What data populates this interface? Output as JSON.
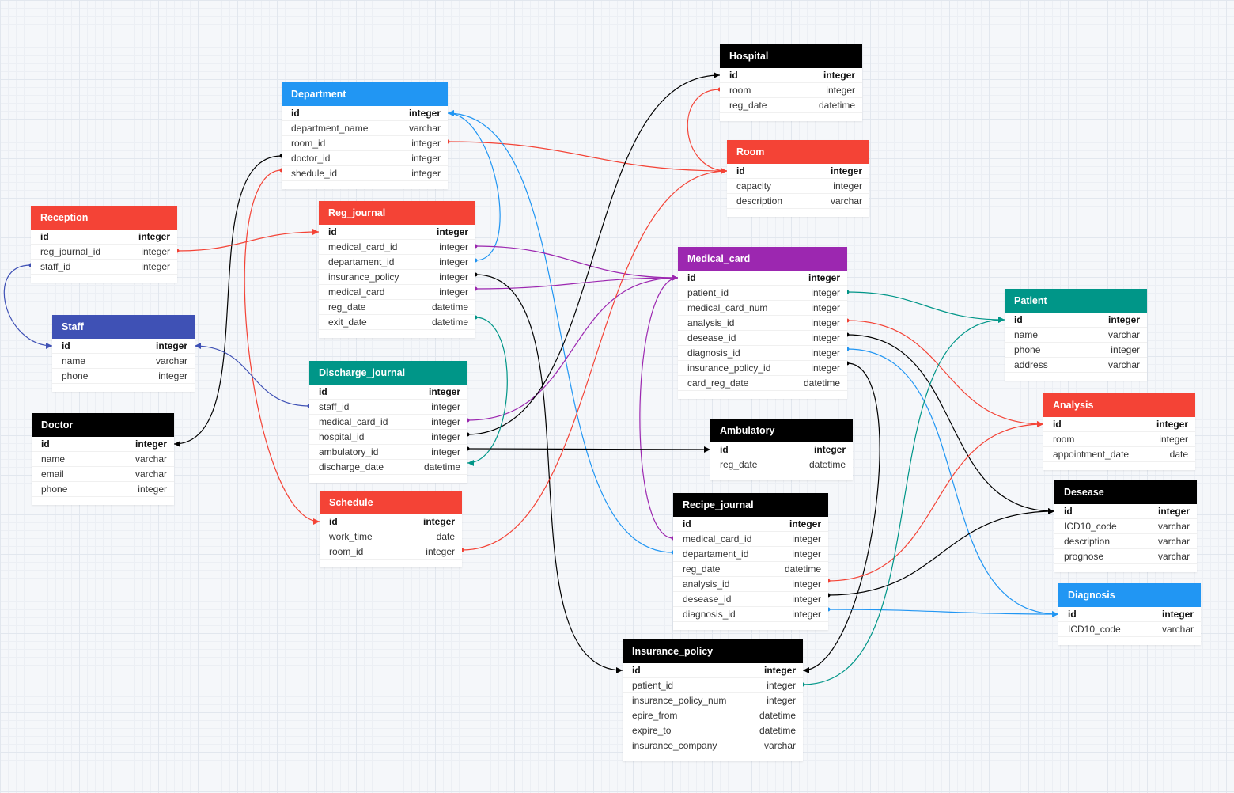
{
  "colors": {
    "red": "#f44336",
    "blue": "#2196f3",
    "black": "#000000",
    "teal": "#009688",
    "purple": "#9c27b0",
    "indigo": "#3f51b5"
  },
  "tables": [
    {
      "key": "Hospital",
      "title": "Hospital",
      "color": "#000000",
      "fields": [
        {
          "name": "id",
          "type": "integer",
          "pk": true
        },
        {
          "name": "room",
          "type": "integer"
        },
        {
          "name": "reg_date",
          "type": "datetime"
        }
      ]
    },
    {
      "key": "Department",
      "title": "Department",
      "color": "#2196f3",
      "fields": [
        {
          "name": "id",
          "type": "integer",
          "pk": true
        },
        {
          "name": "department_name",
          "type": "varchar"
        },
        {
          "name": "room_id",
          "type": "integer"
        },
        {
          "name": "doctor_id",
          "type": "integer"
        },
        {
          "name": "shedule_id",
          "type": "integer"
        }
      ]
    },
    {
      "key": "Room",
      "title": "Room",
      "color": "#f44336",
      "fields": [
        {
          "name": "id",
          "type": "integer",
          "pk": true
        },
        {
          "name": "capacity",
          "type": "integer"
        },
        {
          "name": "description",
          "type": "varchar"
        }
      ]
    },
    {
      "key": "Reception",
      "title": "Reception",
      "color": "#f44336",
      "fields": [
        {
          "name": "id",
          "type": "integer",
          "pk": true
        },
        {
          "name": "reg_journal_id",
          "type": "integer"
        },
        {
          "name": "staff_id",
          "type": "integer"
        }
      ]
    },
    {
      "key": "Reg_journal",
      "title": "Reg_journal",
      "color": "#f44336",
      "fields": [
        {
          "name": "id",
          "type": "integer",
          "pk": true
        },
        {
          "name": "medical_card_id",
          "type": "integer"
        },
        {
          "name": "departament_id",
          "type": "integer"
        },
        {
          "name": "insurance_policy",
          "type": "integer"
        },
        {
          "name": "medical_card",
          "type": "integer"
        },
        {
          "name": "reg_date",
          "type": "datetime"
        },
        {
          "name": "exit_date",
          "type": "datetime"
        }
      ]
    },
    {
      "key": "Medical_card",
      "title": "Medical_card",
      "color": "#9c27b0",
      "fields": [
        {
          "name": "id",
          "type": "integer",
          "pk": true
        },
        {
          "name": "patient_id",
          "type": "integer"
        },
        {
          "name": "medical_card_num",
          "type": "integer"
        },
        {
          "name": "analysis_id",
          "type": "integer"
        },
        {
          "name": "desease_id",
          "type": "integer"
        },
        {
          "name": "diagnosis_id",
          "type": "integer"
        },
        {
          "name": "insurance_policy_id",
          "type": "integer"
        },
        {
          "name": "card_reg_date",
          "type": "datetime"
        }
      ]
    },
    {
      "key": "Staff",
      "title": "Staff",
      "color": "#3f51b5",
      "fields": [
        {
          "name": "id",
          "type": "integer",
          "pk": true
        },
        {
          "name": "name",
          "type": "varchar"
        },
        {
          "name": "phone",
          "type": "integer"
        }
      ]
    },
    {
      "key": "Patient",
      "title": "Patient",
      "color": "#009688",
      "fields": [
        {
          "name": "id",
          "type": "integer",
          "pk": true
        },
        {
          "name": "name",
          "type": "varchar"
        },
        {
          "name": "phone",
          "type": "integer"
        },
        {
          "name": "address",
          "type": "varchar"
        }
      ]
    },
    {
      "key": "Discharge_journal",
      "title": "Discharge_journal",
      "color": "#009688",
      "fields": [
        {
          "name": "id",
          "type": "integer",
          "pk": true
        },
        {
          "name": "staff_id",
          "type": "integer"
        },
        {
          "name": "medical_card_id",
          "type": "integer"
        },
        {
          "name": "hospital_id",
          "type": "integer"
        },
        {
          "name": "ambulatory_id",
          "type": "integer"
        },
        {
          "name": "discharge_date",
          "type": "datetime"
        }
      ]
    },
    {
      "key": "Analysis",
      "title": "Analysis",
      "color": "#f44336",
      "fields": [
        {
          "name": "id",
          "type": "integer",
          "pk": true
        },
        {
          "name": "room",
          "type": "integer"
        },
        {
          "name": "appointment_date",
          "type": "date"
        }
      ]
    },
    {
      "key": "Doctor",
      "title": "Doctor",
      "color": "#000000",
      "fields": [
        {
          "name": "id",
          "type": "integer",
          "pk": true
        },
        {
          "name": "name",
          "type": "varchar"
        },
        {
          "name": "email",
          "type": "varchar"
        },
        {
          "name": "phone",
          "type": "integer"
        }
      ]
    },
    {
      "key": "Ambulatory",
      "title": "Ambulatory",
      "color": "#000000",
      "fields": [
        {
          "name": "id",
          "type": "integer",
          "pk": true
        },
        {
          "name": "reg_date",
          "type": "datetime"
        }
      ]
    },
    {
      "key": "Desease",
      "title": "Desease",
      "color": "#000000",
      "fields": [
        {
          "name": "id",
          "type": "integer",
          "pk": true
        },
        {
          "name": "ICD10_code",
          "type": "varchar"
        },
        {
          "name": "description",
          "type": "varchar"
        },
        {
          "name": "prognose",
          "type": "varchar"
        }
      ]
    },
    {
      "key": "Schedule",
      "title": "Schedule",
      "color": "#f44336",
      "fields": [
        {
          "name": "id",
          "type": "integer",
          "pk": true
        },
        {
          "name": "work_time",
          "type": "date"
        },
        {
          "name": "room_id",
          "type": "integer"
        }
      ]
    },
    {
      "key": "Recipe_journal",
      "title": "Recipe_journal",
      "color": "#000000",
      "fields": [
        {
          "name": "id",
          "type": "integer",
          "pk": true
        },
        {
          "name": "medical_card_id",
          "type": "integer"
        },
        {
          "name": "departament_id",
          "type": "integer"
        },
        {
          "name": "reg_date",
          "type": "datetime"
        },
        {
          "name": "analysis_id",
          "type": "integer"
        },
        {
          "name": "desease_id",
          "type": "integer"
        },
        {
          "name": "diagnosis_id",
          "type": "integer"
        }
      ]
    },
    {
      "key": "Diagnosis",
      "title": "Diagnosis",
      "color": "#2196f3",
      "fields": [
        {
          "name": "id",
          "type": "integer",
          "pk": true
        },
        {
          "name": "ICD10_code",
          "type": "varchar"
        }
      ]
    },
    {
      "key": "Insurance_policy",
      "title": "Insurance_policy",
      "color": "#000000",
      "fields": [
        {
          "name": "id",
          "type": "integer",
          "pk": true
        },
        {
          "name": "patient_id",
          "type": "integer"
        },
        {
          "name": "insurance_policy_num",
          "type": "integer"
        },
        {
          "name": "epire_from",
          "type": "datetime"
        },
        {
          "name": "expire_to",
          "type": "datetime"
        },
        {
          "name": "insurance_company",
          "type": "varchar"
        }
      ]
    }
  ],
  "relations": [
    {
      "from": "Hospital.room",
      "to": "Room.id",
      "color": "#f44336"
    },
    {
      "from": "Department.room_id",
      "to": "Room.id",
      "color": "#f44336"
    },
    {
      "from": "Department.shedule_id",
      "to": "Schedule.id",
      "color": "#f44336"
    },
    {
      "from": "Department.doctor_id",
      "to": "Doctor.id",
      "color": "#000000"
    },
    {
      "from": "Reg_journal.departament_id",
      "to": "Department.id",
      "color": "#2196f3"
    },
    {
      "from": "Recipe_journal.departament_id",
      "to": "Department.id",
      "color": "#2196f3"
    },
    {
      "from": "Reception.reg_journal_id",
      "to": "Reg_journal.id",
      "color": "#f44336"
    },
    {
      "from": "Reception.staff_id",
      "to": "Staff.id",
      "color": "#3f51b5"
    },
    {
      "from": "Discharge_journal.staff_id",
      "to": "Staff.id",
      "color": "#3f51b5"
    },
    {
      "from": "Reg_journal.medical_card_id",
      "to": "Medical_card.id",
      "color": "#9c27b0"
    },
    {
      "from": "Reg_journal.medical_card",
      "to": "Medical_card.id",
      "color": "#9c27b0"
    },
    {
      "from": "Discharge_journal.medical_card_id",
      "to": "Medical_card.id",
      "color": "#9c27b0"
    },
    {
      "from": "Recipe_journal.medical_card_id",
      "to": "Medical_card.id",
      "color": "#9c27b0"
    },
    {
      "from": "Reg_journal.insurance_policy",
      "to": "Insurance_policy.id",
      "color": "#000000"
    },
    {
      "from": "Reg_journal.exit_date",
      "to": "Discharge_journal.discharge_date",
      "color": "#009688"
    },
    {
      "from": "Discharge_journal.hospital_id",
      "to": "Hospital.id",
      "color": "#000000"
    },
    {
      "from": "Discharge_journal.ambulatory_id",
      "to": "Ambulatory.id",
      "color": "#000000"
    },
    {
      "from": "Schedule.room_id",
      "to": "Room.id",
      "color": "#f44336"
    },
    {
      "from": "Medical_card.patient_id",
      "to": "Patient.id",
      "color": "#009688"
    },
    {
      "from": "Medical_card.analysis_id",
      "to": "Analysis.id",
      "color": "#f44336"
    },
    {
      "from": "Medical_card.desease_id",
      "to": "Desease.id",
      "color": "#000000"
    },
    {
      "from": "Medical_card.diagnosis_id",
      "to": "Diagnosis.id",
      "color": "#2196f3"
    },
    {
      "from": "Medical_card.insurance_policy_id",
      "to": "Insurance_policy.id",
      "color": "#000000"
    },
    {
      "from": "Recipe_journal.analysis_id",
      "to": "Analysis.id",
      "color": "#f44336"
    },
    {
      "from": "Recipe_journal.desease_id",
      "to": "Desease.id",
      "color": "#000000"
    },
    {
      "from": "Recipe_journal.diagnosis_id",
      "to": "Diagnosis.id",
      "color": "#2196f3"
    },
    {
      "from": "Insurance_policy.patient_id",
      "to": "Patient.id",
      "color": "#009688"
    }
  ]
}
